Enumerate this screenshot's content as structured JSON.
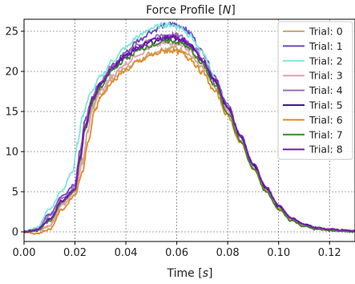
{
  "chart_data": {
    "type": "line",
    "title": "Force Profile [N]",
    "title_main": "Force Profile ",
    "title_unit": "N",
    "xlabel": "Time [s]",
    "xlabel_main": "Time ",
    "xlabel_unit": "s",
    "ylabel": "",
    "xlim": [
      0.0,
      0.13
    ],
    "ylim": [
      -1.2,
      26.5
    ],
    "xticks": [
      0.0,
      0.02,
      0.04,
      0.06,
      0.08,
      0.1,
      0.12
    ],
    "xtick_labels": [
      "0.00",
      "0.02",
      "0.04",
      "0.06",
      "0.08",
      "0.10",
      "0.12"
    ],
    "yticks": [
      0,
      5,
      10,
      15,
      20,
      25
    ],
    "ytick_labels": [
      "0",
      "5",
      "10",
      "15",
      "20",
      "25"
    ],
    "grid": "dashed",
    "legend_position": "top-right",
    "series": [
      {
        "name": "Trial: 0",
        "color": "#c9aa80",
        "x": [
          0.0,
          0.005,
          0.01,
          0.015,
          0.02,
          0.023,
          0.025,
          0.027,
          0.03,
          0.035,
          0.04,
          0.045,
          0.05,
          0.055,
          0.058,
          0.062,
          0.065,
          0.07,
          0.075,
          0.08,
          0.085,
          0.09,
          0.095,
          0.1,
          0.105,
          0.11,
          0.115,
          0.12,
          0.125,
          0.13
        ],
        "y": [
          0,
          0.1,
          0.8,
          3.5,
          5.2,
          9,
          12.5,
          15.5,
          17.2,
          19.2,
          20.4,
          21.3,
          22.3,
          22.8,
          23.0,
          22.7,
          22.0,
          20.4,
          18.0,
          15.0,
          11.5,
          8.2,
          5.3,
          3.0,
          1.5,
          0.8,
          0.5,
          0.3,
          0.2,
          0.1
        ]
      },
      {
        "name": "Trial: 1",
        "color": "#6b48c0",
        "x": [
          0.0,
          0.005,
          0.01,
          0.015,
          0.02,
          0.022,
          0.024,
          0.027,
          0.03,
          0.035,
          0.04,
          0.045,
          0.05,
          0.055,
          0.058,
          0.062,
          0.065,
          0.07,
          0.075,
          0.08,
          0.085,
          0.09,
          0.095,
          0.1,
          0.105,
          0.11,
          0.115,
          0.12,
          0.125,
          0.13
        ],
        "y": [
          0,
          0.3,
          2.2,
          4.5,
          6.0,
          10,
          14,
          17.0,
          18.8,
          20.8,
          22.4,
          23.9,
          25.0,
          25.7,
          25.9,
          25.6,
          24.8,
          22.5,
          19.4,
          15.8,
          12.0,
          8.5,
          5.5,
          3.2,
          1.6,
          0.8,
          0.4,
          0.2,
          0.1,
          0.0
        ]
      },
      {
        "name": "Trial: 2",
        "color": "#7de6dc",
        "x": [
          0.0,
          0.005,
          0.01,
          0.015,
          0.019,
          0.021,
          0.023,
          0.026,
          0.03,
          0.035,
          0.04,
          0.045,
          0.05,
          0.055,
          0.058,
          0.062,
          0.065,
          0.07,
          0.075,
          0.08,
          0.085,
          0.09,
          0.095,
          0.1,
          0.105,
          0.11,
          0.115,
          0.12,
          0.125,
          0.13
        ],
        "y": [
          0,
          0.5,
          2.8,
          5.2,
          7.5,
          11,
          14.5,
          17.2,
          19.3,
          21.4,
          23.0,
          24.4,
          25.4,
          25.8,
          25.8,
          25.4,
          24.5,
          22.3,
          19.2,
          15.6,
          11.8,
          8.3,
          5.4,
          3.1,
          1.6,
          0.8,
          0.4,
          0.2,
          0.1,
          0.0
        ]
      },
      {
        "name": "Trial: 3",
        "color": "#e0a0b0",
        "x": [
          0.0,
          0.005,
          0.01,
          0.015,
          0.02,
          0.023,
          0.025,
          0.027,
          0.03,
          0.035,
          0.04,
          0.045,
          0.05,
          0.055,
          0.058,
          0.062,
          0.065,
          0.07,
          0.075,
          0.08,
          0.085,
          0.09,
          0.095,
          0.1,
          0.105,
          0.11,
          0.115,
          0.12,
          0.125,
          0.13
        ],
        "y": [
          0,
          0.1,
          0.7,
          3.3,
          5.0,
          8.5,
          12.5,
          15.8,
          17.5,
          19.6,
          21.0,
          22.2,
          23.0,
          23.5,
          23.6,
          23.3,
          22.6,
          20.9,
          18.4,
          15.2,
          11.7,
          8.3,
          5.4,
          3.1,
          1.6,
          0.8,
          0.4,
          0.3,
          0.2,
          0.1
        ]
      },
      {
        "name": "Trial: 4",
        "color": "#9c6fb8",
        "x": [
          0.0,
          0.005,
          0.01,
          0.015,
          0.02,
          0.022,
          0.024,
          0.027,
          0.03,
          0.035,
          0.04,
          0.045,
          0.05,
          0.055,
          0.058,
          0.062,
          0.065,
          0.07,
          0.075,
          0.08,
          0.085,
          0.09,
          0.095,
          0.1,
          0.105,
          0.11,
          0.115,
          0.12,
          0.125,
          0.13
        ],
        "y": [
          0,
          0.3,
          2.0,
          4.2,
          5.6,
          9.5,
          13.5,
          16.8,
          18.6,
          20.8,
          22.2,
          23.3,
          24.1,
          24.5,
          24.6,
          24.3,
          23.6,
          21.7,
          19.0,
          15.7,
          12.0,
          8.5,
          5.5,
          3.2,
          1.7,
          0.9,
          0.5,
          0.3,
          0.2,
          0.1
        ]
      },
      {
        "name": "Trial: 5",
        "color": "#3a1a8c",
        "x": [
          0.0,
          0.005,
          0.01,
          0.015,
          0.02,
          0.022,
          0.024,
          0.027,
          0.03,
          0.035,
          0.04,
          0.045,
          0.05,
          0.055,
          0.058,
          0.062,
          0.065,
          0.07,
          0.075,
          0.08,
          0.085,
          0.09,
          0.095,
          0.1,
          0.105,
          0.11,
          0.115,
          0.12,
          0.125,
          0.13
        ],
        "y": [
          0,
          0.2,
          1.5,
          3.8,
          5.3,
          9.0,
          13.0,
          16.5,
          18.3,
          20.5,
          21.9,
          22.9,
          23.7,
          24.1,
          24.2,
          23.9,
          23.2,
          21.4,
          18.8,
          15.5,
          11.9,
          8.4,
          5.5,
          3.2,
          1.7,
          0.9,
          0.5,
          0.3,
          0.2,
          0.1
        ]
      },
      {
        "name": "Trial: 6",
        "color": "#e08a2a",
        "x": [
          0.0,
          0.005,
          0.01,
          0.015,
          0.02,
          0.023,
          0.025,
          0.028,
          0.03,
          0.035,
          0.04,
          0.045,
          0.05,
          0.055,
          0.058,
          0.062,
          0.065,
          0.07,
          0.075,
          0.08,
          0.085,
          0.09,
          0.095,
          0.1,
          0.105,
          0.11,
          0.115,
          0.12,
          0.125,
          0.13
        ],
        "y": [
          0,
          -0.2,
          0.3,
          2.8,
          4.6,
          7.5,
          11.0,
          15.3,
          16.8,
          18.8,
          20.2,
          21.2,
          22.0,
          22.5,
          22.6,
          22.3,
          21.6,
          19.9,
          17.5,
          14.5,
          11.1,
          7.9,
          5.1,
          2.9,
          1.5,
          0.7,
          0.4,
          0.2,
          0.1,
          0.0
        ]
      },
      {
        "name": "Trial: 7",
        "color": "#3a8a28",
        "x": [
          0.0,
          0.005,
          0.01,
          0.015,
          0.02,
          0.022,
          0.024,
          0.027,
          0.03,
          0.035,
          0.04,
          0.045,
          0.05,
          0.055,
          0.058,
          0.062,
          0.065,
          0.07,
          0.075,
          0.08,
          0.085,
          0.09,
          0.095,
          0.1,
          0.105,
          0.11,
          0.115,
          0.12,
          0.125,
          0.13
        ],
        "y": [
          0,
          0.2,
          1.3,
          3.7,
          5.2,
          8.8,
          12.8,
          16.2,
          18.0,
          20.2,
          21.6,
          22.6,
          23.3,
          23.7,
          23.8,
          23.5,
          22.8,
          20.9,
          18.2,
          14.9,
          11.3,
          7.9,
          5.0,
          2.8,
          1.4,
          0.7,
          0.3,
          0.2,
          0.1,
          0.0
        ]
      },
      {
        "name": "Trial: 8",
        "color": "#7a18b8",
        "x": [
          0.0,
          0.005,
          0.01,
          0.015,
          0.02,
          0.022,
          0.024,
          0.027,
          0.03,
          0.035,
          0.04,
          0.045,
          0.05,
          0.055,
          0.058,
          0.062,
          0.065,
          0.07,
          0.075,
          0.08,
          0.085,
          0.09,
          0.095,
          0.1,
          0.105,
          0.11,
          0.115,
          0.12,
          0.125,
          0.13
        ],
        "y": [
          0,
          0.2,
          1.6,
          3.9,
          5.4,
          9.2,
          13.2,
          16.6,
          18.4,
          20.6,
          22.0,
          23.0,
          23.8,
          24.2,
          24.3,
          24.0,
          23.3,
          21.5,
          18.9,
          15.6,
          12.0,
          8.5,
          5.6,
          3.3,
          1.7,
          0.9,
          0.5,
          0.3,
          0.2,
          0.1
        ]
      }
    ]
  }
}
